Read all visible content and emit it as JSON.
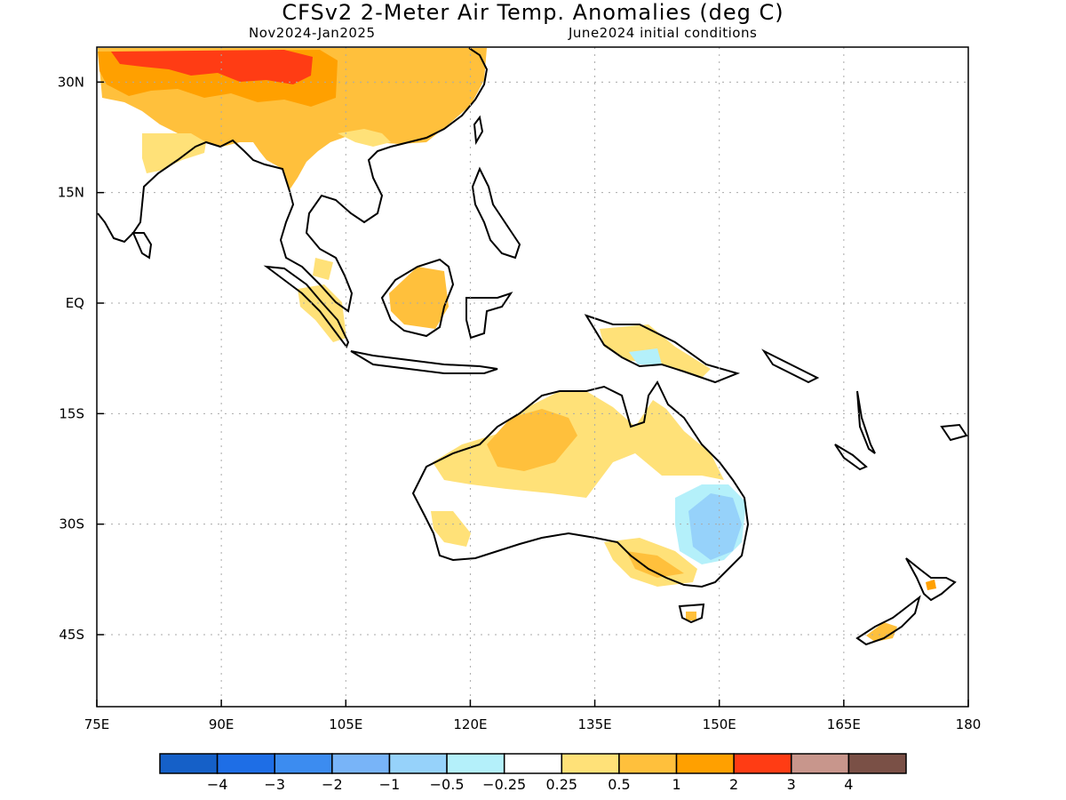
{
  "title": "CFSv2 2-Meter Air Temp. Anomalies (deg C)",
  "subtitle_left": "Nov2024-Jan2025",
  "subtitle_right": "June2024 initial conditions",
  "map": {
    "lon_range": [
      75,
      180
    ],
    "lat_range": [
      -55,
      35
    ],
    "lon_ticks": [
      {
        "value": 75,
        "label": "75E"
      },
      {
        "value": 90,
        "label": "90E"
      },
      {
        "value": 105,
        "label": "105E"
      },
      {
        "value": 120,
        "label": "120E"
      },
      {
        "value": 135,
        "label": "135E"
      },
      {
        "value": 150,
        "label": "150E"
      },
      {
        "value": 165,
        "label": "165E"
      },
      {
        "value": 180,
        "label": "180"
      }
    ],
    "lat_ticks": [
      {
        "value": 30,
        "label": "30N"
      },
      {
        "value": 15,
        "label": "15N"
      },
      {
        "value": 0,
        "label": "EQ"
      },
      {
        "value": -15,
        "label": "15S"
      },
      {
        "value": -30,
        "label": "30S"
      },
      {
        "value": -45,
        "label": "45S"
      }
    ],
    "grid": "dotted"
  },
  "colorbar": {
    "colors": [
      "#1560c8",
      "#1e6ee6",
      "#3c8cf0",
      "#78b4f8",
      "#96d2fa",
      "#b4f0fa",
      "#ffffff",
      "#ffe178",
      "#ffc03c",
      "#ffa000",
      "#ff3c14",
      "#c8968c",
      "#7a5046"
    ],
    "labels": [
      "-4",
      "-3",
      "-2",
      "-1",
      "-0.5",
      "-0.25",
      "0.25",
      "0.5",
      "1",
      "2",
      "3",
      "4"
    ]
  },
  "anomaly_colors": {
    "light_yellow": "#ffe178",
    "orange": "#ffc03c",
    "dark_orange": "#ffa000",
    "red": "#ff3c14",
    "light_blue": "#b4f0fa",
    "blue": "#96d2fa"
  }
}
